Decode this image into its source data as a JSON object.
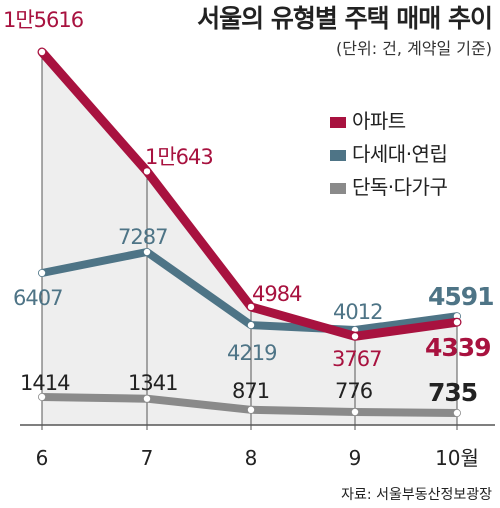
{
  "chart_data": {
    "type": "line",
    "title": "서울의 유형별 주택 매매 추이",
    "subtitle": "(단위: 건, 계약일 기준)",
    "source": "자료: 서울부동산정보광장",
    "categories": [
      "6",
      "7",
      "8",
      "9",
      "10월"
    ],
    "xlabel": "",
    "ylabel": "",
    "ylim": [
      0,
      16000
    ],
    "grid": false,
    "legend_position": "top-right",
    "series": [
      {
        "name": "아파트",
        "color": "#a8123f",
        "values": [
          15616,
          10643,
          4984,
          3767,
          4339
        ],
        "labels": [
          "1만5616",
          "1만643",
          "4984",
          "3767",
          "4339"
        ]
      },
      {
        "name": "다세대·연립",
        "color": "#4e7486",
        "values": [
          6407,
          7287,
          4219,
          4012,
          4591
        ],
        "labels": [
          "6407",
          "7287",
          "4219",
          "4012",
          "4591"
        ]
      },
      {
        "name": "단독·다가구",
        "color": "#8a8a8a",
        "values": [
          1414,
          1341,
          871,
          776,
          735
        ],
        "labels": [
          "1414",
          "1341",
          "871",
          "776",
          "735"
        ]
      }
    ]
  }
}
